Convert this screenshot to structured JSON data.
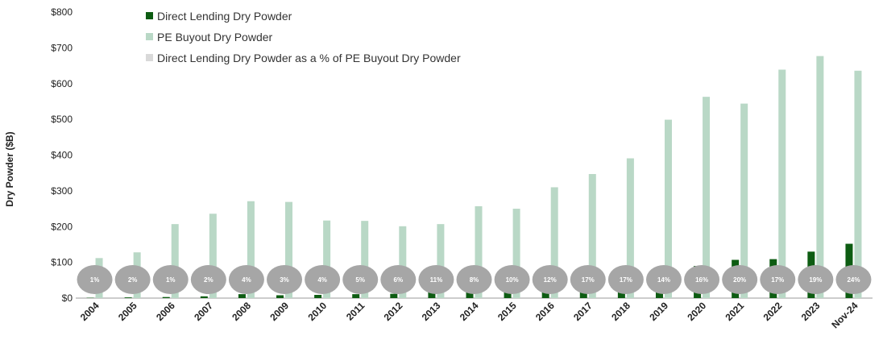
{
  "chart_data": {
    "type": "bar",
    "title": "",
    "xlabel": "",
    "ylabel": "Dry Powder ($B)",
    "ylim": [
      0,
      800
    ],
    "yticks": [
      0,
      100,
      200,
      300,
      400,
      500,
      600,
      700,
      800
    ],
    "ytick_labels": [
      "$0",
      "$100",
      "$200",
      "$300",
      "$400",
      "$500",
      "$600",
      "$700",
      "$800"
    ],
    "categories": [
      "2004",
      "2005",
      "2006",
      "2007",
      "2008",
      "2009",
      "2010",
      "2011",
      "2012",
      "2013",
      "2014",
      "2015",
      "2016",
      "2017",
      "2018",
      "2019",
      "2020",
      "2021",
      "2022",
      "2023",
      "Nov-24"
    ],
    "series": [
      {
        "name": "Direct Lending Dry Powder",
        "color": "#0d5c12",
        "values": [
          1,
          2,
          3,
          5,
          11,
          8,
          9,
          11,
          12,
          22,
          20,
          25,
          37,
          59,
          66,
          70,
          90,
          107,
          109,
          130,
          152
        ]
      },
      {
        "name": "PE Buyout Dry Powder",
        "color": "#b9d8c6",
        "values": [
          112,
          128,
          207,
          236,
          271,
          269,
          217,
          216,
          201,
          207,
          257,
          250,
          310,
          347,
          391,
          499,
          563,
          544,
          639,
          677,
          636
        ]
      }
    ],
    "ratio_series": {
      "name": "Direct Lending Dry Powder as a % of PE Buyout Dry Powder",
      "color": "#a6a6a6",
      "labels": [
        "1%",
        "2%",
        "1%",
        "2%",
        "4%",
        "3%",
        "4%",
        "5%",
        "6%",
        "11%",
        "8%",
        "10%",
        "12%",
        "17%",
        "17%",
        "14%",
        "16%",
        "20%",
        "17%",
        "19%",
        "24%"
      ]
    },
    "legend": {
      "placement": "top-left",
      "items": [
        "Direct Lending Dry Powder",
        "PE Buyout Dry Powder",
        "Direct Lending Dry Powder as a % of PE Buyout Dry Powder"
      ]
    },
    "grid": false
  }
}
